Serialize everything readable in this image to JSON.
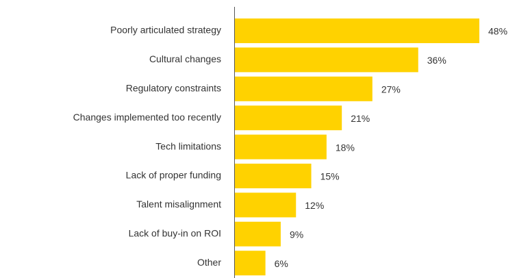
{
  "chart_data": {
    "type": "bar",
    "orientation": "horizontal",
    "categories": [
      "Poorly articulated strategy",
      "Cultural changes",
      "Regulatory constraints",
      "Changes implemented too recently",
      "Tech limitations",
      "Lack of proper funding",
      "Talent misalignment",
      "Lack of buy-in on ROI",
      "Other"
    ],
    "values": [
      48,
      36,
      27,
      21,
      18,
      15,
      12,
      9,
      6
    ],
    "value_labels": [
      "48%",
      "36%",
      "27%",
      "21%",
      "18%",
      "15%",
      "12%",
      "9%",
      "6%"
    ],
    "color": "#ffd200"
  }
}
